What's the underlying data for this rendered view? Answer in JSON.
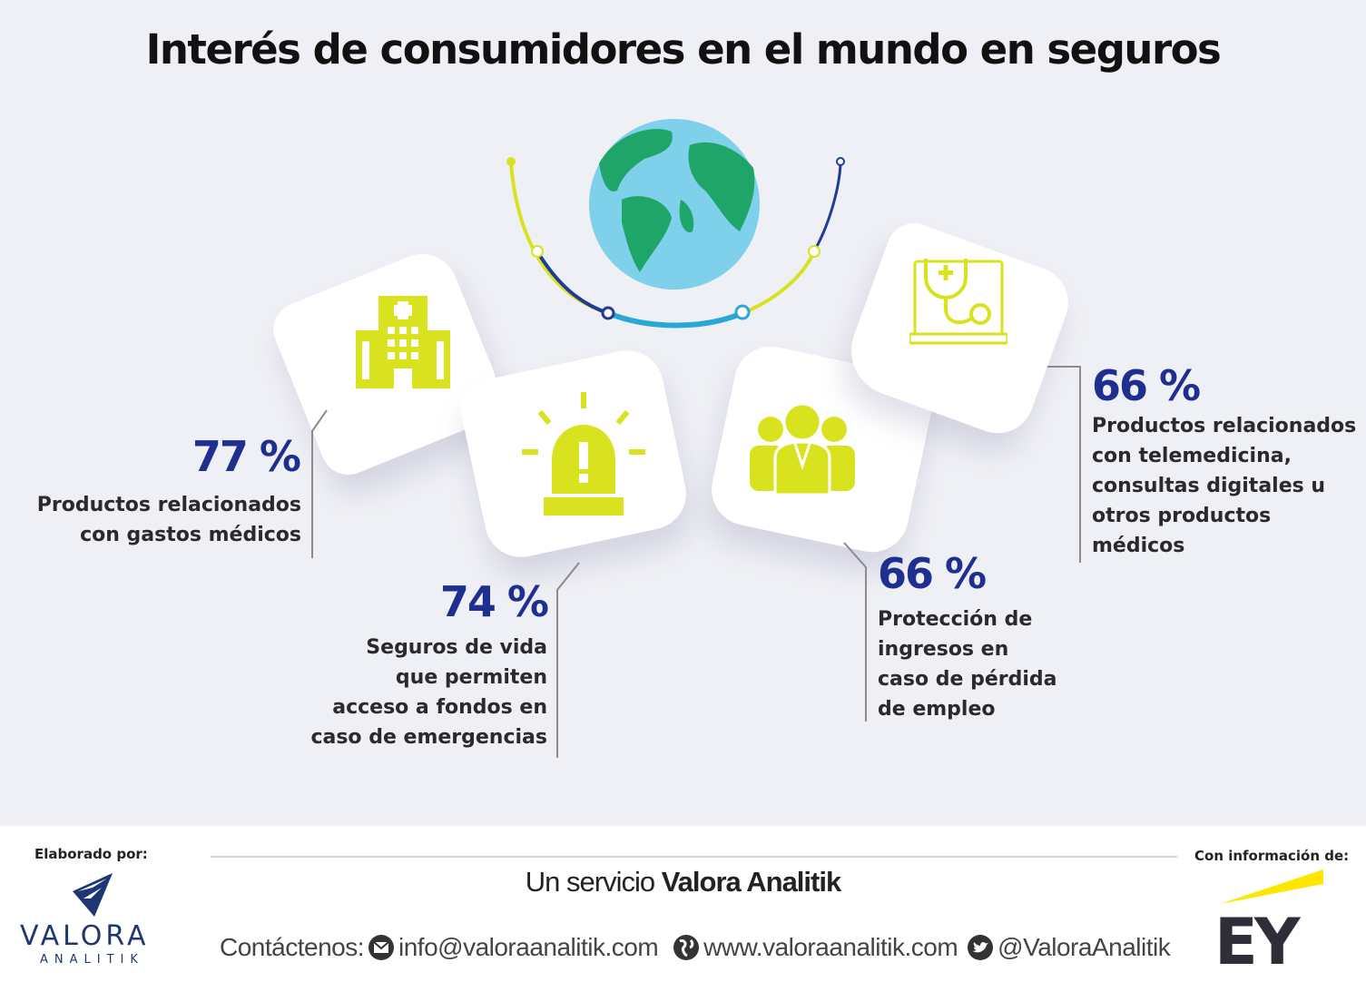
{
  "title": "Interés de consumidores en el  mundo en seguros",
  "items": [
    {
      "pct": "77 %",
      "desc": "Productos relacionados\ncon gastos médicos",
      "icon": "hospital-icon"
    },
    {
      "pct": "74 %",
      "desc": "Seguros de vida\nque permiten\nacceso a fondos en\ncaso de emergencias",
      "icon": "alarm-siren-icon"
    },
    {
      "pct": "66 %",
      "desc": "Protección de\ningresos en\ncaso de pérdida\nde empleo",
      "icon": "people-group-icon"
    },
    {
      "pct": "66 %",
      "desc": "Productos relacionados\ncon telemedicina,\nconsultas digitales u\notros productos\nmédicos",
      "icon": "telemedicine-laptop-icon"
    }
  ],
  "footer": {
    "made_by": "Elaborado por:",
    "brand_top": "VALORA",
    "brand_bottom": "ANALITIK",
    "service_prefix": "Un servicio ",
    "service_brand": "Valora Analitik",
    "contact_label": "Contáctenos:",
    "email": "info@valoraanalitik.com",
    "website": "www.valoraanalitik.com",
    "twitter": "@ValoraAnalitik",
    "info_from": "Con información de:",
    "partner": "EY"
  },
  "colors": {
    "accent_blue": "#1e2f8f",
    "icon_yellow": "#d9e21f",
    "globe_ocean": "#7fd0ea",
    "globe_land": "#1fa46a"
  }
}
